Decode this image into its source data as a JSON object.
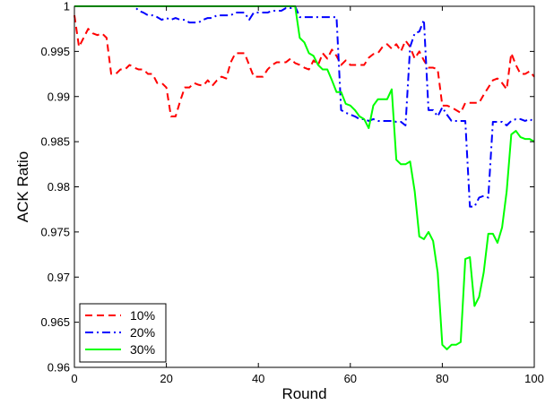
{
  "chart_data": {
    "type": "line",
    "title": "",
    "xlabel": "Round",
    "ylabel": "ACK Ratio",
    "xlim": [
      0,
      100
    ],
    "ylim": [
      0.96,
      1
    ],
    "xticks": [
      0,
      20,
      40,
      60,
      80,
      100
    ],
    "xtick_labels": [
      "0",
      "20",
      "40",
      "60",
      "80",
      "100"
    ],
    "yticks": [
      0.96,
      0.965,
      0.97,
      0.975,
      0.98,
      0.985,
      0.99,
      0.995,
      1
    ],
    "ytick_labels": [
      "0.96",
      "0.965",
      "0.97",
      "0.975",
      "0.98",
      "0.985",
      "0.99",
      "0.995",
      "1"
    ],
    "grid": false,
    "legend_position": "bottom-left",
    "series": [
      {
        "name": "10%",
        "color": "#ff0000",
        "style": "dashed",
        "x": [
          0,
          1,
          2,
          3,
          4,
          5,
          6,
          7,
          8,
          9,
          10,
          11,
          12,
          13,
          14,
          15,
          16,
          17,
          18,
          19,
          20,
          21,
          22,
          23,
          24,
          25,
          26,
          27,
          28,
          29,
          30,
          31,
          32,
          33,
          34,
          35,
          36,
          37,
          38,
          39,
          40,
          41,
          42,
          43,
          44,
          45,
          46,
          47,
          48,
          49,
          50,
          51,
          52,
          53,
          54,
          55,
          56,
          57,
          58,
          59,
          60,
          61,
          62,
          63,
          64,
          65,
          66,
          67,
          68,
          69,
          70,
          71,
          72,
          73,
          74,
          75,
          76,
          77,
          78,
          79,
          80,
          81,
          82,
          83,
          84,
          85,
          86,
          87,
          88,
          89,
          90,
          91,
          92,
          93,
          94,
          95,
          96,
          97,
          98,
          99,
          100
        ],
        "y": [
          0.999,
          0.9955,
          0.9965,
          0.9975,
          0.997,
          0.9968,
          0.997,
          0.9965,
          0.9925,
          0.9925,
          0.993,
          0.993,
          0.9935,
          0.9932,
          0.993,
          0.993,
          0.9925,
          0.9925,
          0.9915,
          0.9915,
          0.991,
          0.9878,
          0.9878,
          0.9895,
          0.991,
          0.991,
          0.9915,
          0.9913,
          0.9912,
          0.9918,
          0.9912,
          0.9918,
          0.9922,
          0.992,
          0.9938,
          0.9948,
          0.9948,
          0.9948,
          0.9935,
          0.9922,
          0.9922,
          0.9922,
          0.993,
          0.9935,
          0.9938,
          0.9938,
          0.9938,
          0.9942,
          0.9937,
          0.9935,
          0.9932,
          0.993,
          0.994,
          0.9935,
          0.9948,
          0.9942,
          0.9952,
          0.9945,
          0.9935,
          0.994,
          0.9935,
          0.9935,
          0.9935,
          0.9935,
          0.9943,
          0.9947,
          0.9948,
          0.9955,
          0.9958,
          0.9953,
          0.9958,
          0.995,
          0.9962,
          0.9955,
          0.9942,
          0.995,
          0.994,
          0.9932,
          0.9932,
          0.993,
          0.989,
          0.989,
          0.9888,
          0.9885,
          0.9882,
          0.9893,
          0.9893,
          0.9893,
          0.9893,
          0.9902,
          0.991,
          0.9918,
          0.992,
          0.9915,
          0.9908,
          0.9948,
          0.9935,
          0.9925,
          0.9925,
          0.9928,
          0.9922
        ]
      },
      {
        "name": "20%",
        "color": "#0000ff",
        "style": "dashdot",
        "x": [
          0,
          1,
          2,
          3,
          4,
          5,
          6,
          7,
          8,
          9,
          10,
          11,
          12,
          13,
          14,
          15,
          16,
          17,
          18,
          19,
          20,
          21,
          22,
          23,
          24,
          25,
          26,
          27,
          28,
          29,
          30,
          31,
          32,
          33,
          34,
          35,
          36,
          37,
          38,
          39,
          40,
          41,
          42,
          43,
          44,
          45,
          46,
          47,
          48,
          49,
          50,
          51,
          52,
          53,
          54,
          55,
          56,
          57,
          58,
          59,
          60,
          61,
          62,
          63,
          64,
          65,
          66,
          67,
          68,
          69,
          70,
          71,
          72,
          73,
          74,
          75,
          76,
          77,
          78,
          79,
          80,
          81,
          82,
          83,
          84,
          85,
          86,
          87,
          88,
          89,
          90,
          91,
          92,
          93,
          94,
          95,
          96,
          97,
          98,
          99,
          100
        ],
        "y": [
          1,
          1,
          1,
          1,
          1,
          1,
          1,
          1,
          1,
          1,
          1,
          1,
          1,
          1,
          0.9995,
          0.9993,
          0.999,
          0.999,
          0.9988,
          0.9985,
          0.9987,
          0.9985,
          0.9987,
          0.9985,
          0.9985,
          0.9982,
          0.9982,
          0.9982,
          0.9985,
          0.9987,
          0.9987,
          0.999,
          0.999,
          0.999,
          0.999,
          0.9993,
          0.9993,
          0.9993,
          0.9985,
          0.9993,
          0.9993,
          0.9993,
          0.9993,
          0.9995,
          0.9995,
          0.9995,
          0.9998,
          0.9998,
          1,
          0.9988,
          0.9988,
          0.9988,
          0.9988,
          0.9988,
          0.9988,
          0.9988,
          0.9988,
          0.9988,
          0.9885,
          0.9882,
          0.988,
          0.9878,
          0.9875,
          0.9875,
          0.9873,
          0.9875,
          0.9873,
          0.9873,
          0.9873,
          0.9873,
          0.9872,
          0.9872,
          0.9868,
          0.9955,
          0.997,
          0.9972,
          0.9985,
          0.9885,
          0.9885,
          0.9878,
          0.9888,
          0.988,
          0.9873,
          0.9873,
          0.9873,
          0.9873,
          0.9778,
          0.9778,
          0.9788,
          0.979,
          0.9788,
          0.9872,
          0.9872,
          0.9872,
          0.9868,
          0.9873,
          0.9875,
          0.9875,
          0.9873,
          0.9875,
          0.9872
        ]
      },
      {
        "name": "30%",
        "color": "#00ff00",
        "style": "solid",
        "x": [
          0,
          1,
          2,
          3,
          4,
          5,
          6,
          7,
          8,
          9,
          10,
          11,
          12,
          13,
          14,
          15,
          16,
          17,
          18,
          19,
          20,
          21,
          22,
          23,
          24,
          25,
          26,
          27,
          28,
          29,
          30,
          31,
          32,
          33,
          34,
          35,
          36,
          37,
          38,
          39,
          40,
          41,
          42,
          43,
          44,
          45,
          46,
          47,
          48,
          49,
          50,
          51,
          52,
          53,
          54,
          55,
          56,
          57,
          58,
          59,
          60,
          61,
          62,
          63,
          64,
          65,
          66,
          67,
          68,
          69,
          70,
          71,
          72,
          73,
          74,
          75,
          76,
          77,
          78,
          79,
          80,
          81,
          82,
          83,
          84,
          85,
          86,
          87,
          88,
          89,
          90,
          91,
          92,
          93,
          94,
          95,
          96,
          97,
          98,
          99,
          100
        ],
        "y": [
          1,
          1,
          1,
          1,
          1,
          1,
          1,
          1,
          1,
          1,
          1,
          1,
          1,
          1,
          1,
          1,
          1,
          1,
          1,
          1,
          1,
          1,
          1,
          1,
          1,
          1,
          1,
          1,
          1,
          1,
          1,
          1,
          1,
          1,
          1,
          1,
          1,
          1,
          1,
          1,
          1,
          1,
          1,
          1,
          1,
          1,
          1,
          1,
          1,
          0.9965,
          0.996,
          0.9948,
          0.9945,
          0.9935,
          0.993,
          0.993,
          0.9918,
          0.9905,
          0.9905,
          0.9892,
          0.989,
          0.9885,
          0.9878,
          0.9875,
          0.9865,
          0.989,
          0.9897,
          0.9897,
          0.9897,
          0.9908,
          0.983,
          0.9825,
          0.9825,
          0.9828,
          0.9795,
          0.9745,
          0.9742,
          0.975,
          0.974,
          0.9705,
          0.9625,
          0.962,
          0.9625,
          0.9625,
          0.9628,
          0.972,
          0.9722,
          0.9668,
          0.9678,
          0.9705,
          0.9748,
          0.9748,
          0.9738,
          0.9755,
          0.9795,
          0.9858,
          0.9862,
          0.9855,
          0.9853,
          0.9853,
          0.985
        ]
      }
    ]
  }
}
